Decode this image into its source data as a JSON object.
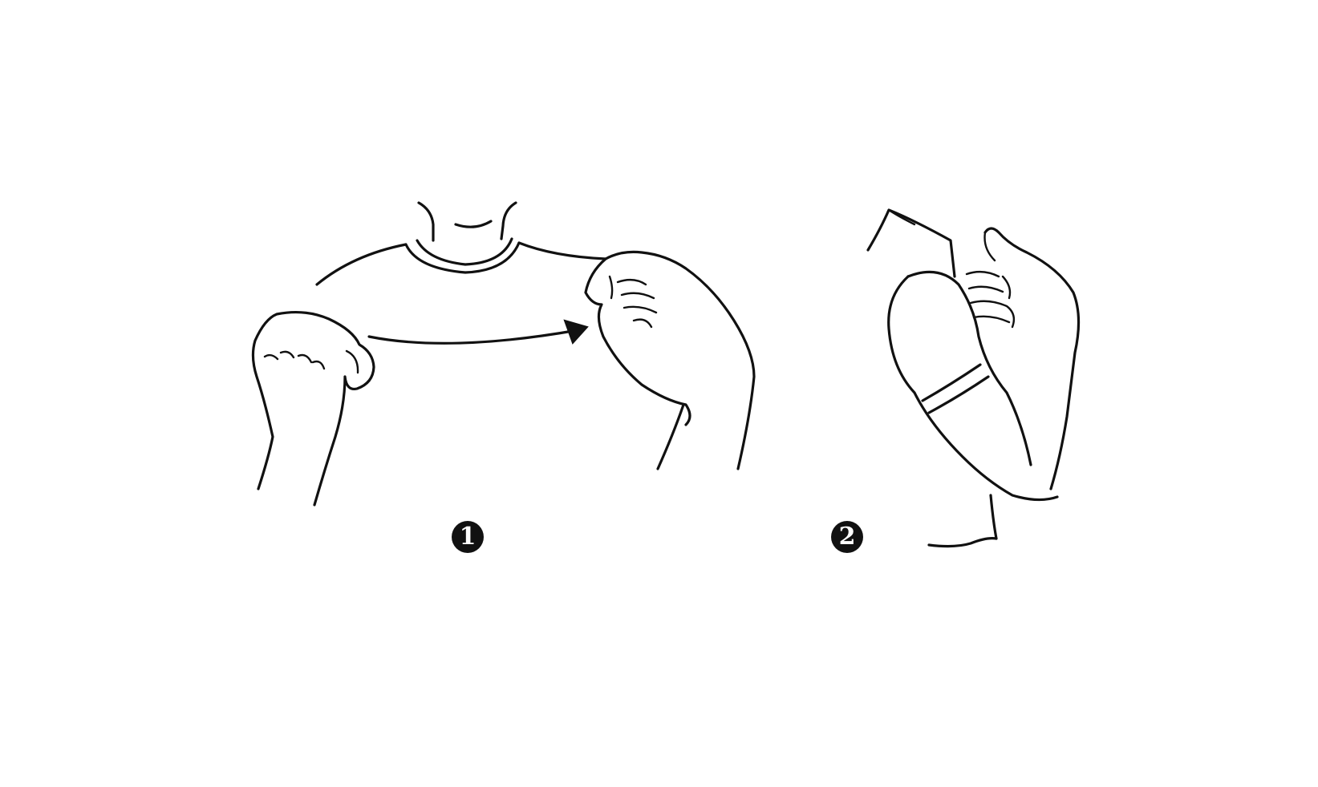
{
  "steps": [
    {
      "number": "1"
    },
    {
      "number": "2"
    }
  ],
  "colors": {
    "ink": "#111111",
    "background": "#ffffff"
  }
}
